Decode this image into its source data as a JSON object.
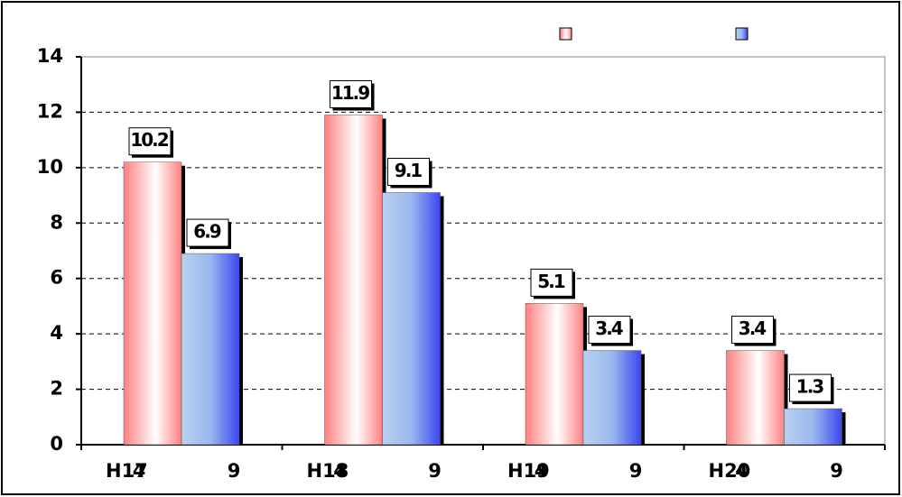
{
  "chart_data": {
    "type": "bar",
    "categories": [
      "H17",
      "H18",
      "H19",
      "H20"
    ],
    "bar_labels": [
      "4",
      "9"
    ],
    "series": [
      {
        "color": "#ff8080",
        "values": [
          10.2,
          11.9,
          5.1,
          3.4
        ]
      },
      {
        "color": "#3c46f0",
        "values": [
          6.9,
          9.1,
          3.4,
          1.3
        ]
      }
    ],
    "ylim": [
      0,
      14
    ],
    "yticks": [
      0,
      2,
      4,
      6,
      8,
      10,
      12,
      14
    ],
    "grid": true
  }
}
